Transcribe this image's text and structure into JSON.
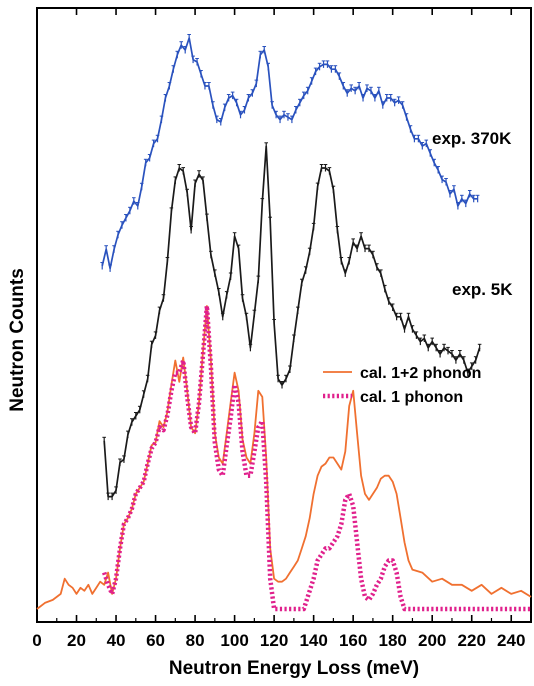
{
  "chart_data": {
    "type": "line",
    "xlabel": "Neutron Energy Loss  (meV)",
    "ylabel": "Neutron Counts",
    "xlim": [
      0,
      250
    ],
    "xticks": [
      0,
      20,
      40,
      60,
      80,
      100,
      120,
      140,
      160,
      180,
      200,
      220,
      240
    ],
    "yticks_shown": false,
    "grid": false,
    "legend_position": "center-right",
    "series": [
      {
        "name": "exp. 370K",
        "color": "#2a52be",
        "style": "line-errorbars",
        "x": [
          33,
          35,
          37,
          39,
          41,
          43,
          45,
          47,
          49,
          51,
          53,
          55,
          57,
          59,
          61,
          63,
          65,
          67,
          69,
          71,
          73,
          75,
          77,
          79,
          81,
          83,
          85,
          87,
          89,
          91,
          93,
          95,
          97,
          99,
          101,
          103,
          105,
          107,
          109,
          111,
          113,
          115,
          117,
          119,
          121,
          123,
          125,
          127,
          129,
          131,
          133,
          135,
          137,
          139,
          141,
          143,
          145,
          147,
          149,
          151,
          153,
          155,
          157,
          159,
          161,
          163,
          165,
          167,
          169,
          171,
          173,
          175,
          177,
          179,
          181,
          183,
          185,
          187,
          189,
          191,
          193,
          195,
          197,
          199,
          201,
          203,
          205,
          207,
          209,
          211,
          213,
          215,
          217,
          219,
          221,
          223
        ],
        "y": [
          0.05,
          0.12,
          0.04,
          0.12,
          0.18,
          0.22,
          0.25,
          0.28,
          0.32,
          0.3,
          0.38,
          0.48,
          0.5,
          0.56,
          0.58,
          0.66,
          0.75,
          0.8,
          0.87,
          0.93,
          0.97,
          0.95,
          1.0,
          0.91,
          0.9,
          0.85,
          0.8,
          0.8,
          0.72,
          0.66,
          0.65,
          0.71,
          0.75,
          0.76,
          0.73,
          0.68,
          0.7,
          0.75,
          0.77,
          0.81,
          0.93,
          0.95,
          0.88,
          0.72,
          0.68,
          0.66,
          0.68,
          0.67,
          0.66,
          0.7,
          0.73,
          0.76,
          0.78,
          0.82,
          0.86,
          0.88,
          0.89,
          0.89,
          0.87,
          0.87,
          0.84,
          0.8,
          0.77,
          0.79,
          0.78,
          0.8,
          0.75,
          0.79,
          0.78,
          0.75,
          0.78,
          0.72,
          0.75,
          0.75,
          0.73,
          0.74,
          0.72,
          0.67,
          0.62,
          0.58,
          0.58,
          0.55,
          0.56,
          0.52,
          0.48,
          0.45,
          0.41,
          0.4,
          0.35,
          0.37,
          0.3,
          0.33,
          0.31,
          0.35,
          0.33,
          0.33
        ]
      },
      {
        "name": "exp. 5K",
        "color": "#1a1a1a",
        "style": "line-errorbars",
        "x": [
          34,
          36,
          38,
          40,
          42,
          44,
          46,
          48,
          50,
          52,
          54,
          56,
          58,
          60,
          62,
          64,
          66,
          68,
          70,
          72,
          74,
          76,
          78,
          80,
          82,
          84,
          86,
          88,
          90,
          92,
          94,
          96,
          98,
          100,
          102,
          104,
          106,
          108,
          110,
          112,
          114,
          116,
          118,
          120,
          122,
          124,
          126,
          128,
          130,
          132,
          134,
          136,
          138,
          140,
          142,
          144,
          146,
          148,
          150,
          152,
          154,
          156,
          158,
          160,
          162,
          164,
          166,
          168,
          170,
          172,
          174,
          176,
          178,
          180,
          182,
          184,
          186,
          188,
          190,
          192,
          194,
          196,
          198,
          200,
          202,
          204,
          206,
          208,
          210,
          212,
          214,
          216,
          218,
          220,
          222,
          224
        ],
        "y": [
          0.12,
          -0.06,
          -0.06,
          -0.04,
          0.05,
          0.06,
          0.14,
          0.18,
          0.2,
          0.22,
          0.27,
          0.32,
          0.43,
          0.46,
          0.54,
          0.58,
          0.7,
          0.86,
          0.96,
          1.0,
          0.99,
          0.92,
          0.8,
          0.95,
          0.98,
          0.96,
          0.84,
          0.72,
          0.66,
          0.6,
          0.52,
          0.59,
          0.65,
          0.78,
          0.74,
          0.58,
          0.52,
          0.42,
          0.53,
          0.64,
          0.89,
          1.07,
          0.83,
          0.5,
          0.32,
          0.3,
          0.32,
          0.35,
          0.45,
          0.54,
          0.63,
          0.67,
          0.73,
          0.81,
          0.94,
          1.0,
          1.0,
          0.99,
          0.93,
          0.8,
          0.7,
          0.66,
          0.7,
          0.76,
          0.74,
          0.78,
          0.74,
          0.74,
          0.72,
          0.68,
          0.66,
          0.61,
          0.57,
          0.55,
          0.52,
          0.52,
          0.48,
          0.52,
          0.48,
          0.46,
          0.44,
          0.45,
          0.42,
          0.44,
          0.42,
          0.4,
          0.42,
          0.41,
          0.4,
          0.38,
          0.4,
          0.38,
          0.34,
          0.36,
          0.38,
          0.42
        ]
      },
      {
        "name": "cal. 1+2 phonon",
        "color": "#f07030",
        "style": "solid",
        "x": [
          0,
          4,
          8,
          12,
          14,
          16,
          18,
          20,
          22,
          24,
          26,
          28,
          30,
          32,
          34,
          36,
          38,
          40,
          42,
          44,
          46,
          48,
          50,
          52,
          54,
          56,
          58,
          60,
          62,
          64,
          66,
          68,
          70,
          72,
          74,
          76,
          78,
          80,
          82,
          84,
          86,
          88,
          90,
          92,
          94,
          96,
          98,
          100,
          102,
          104,
          106,
          108,
          110,
          112,
          114,
          116,
          118,
          120,
          122,
          124,
          126,
          128,
          130,
          132,
          134,
          136,
          138,
          140,
          142,
          144,
          146,
          148,
          150,
          152,
          154,
          156,
          158,
          160,
          162,
          164,
          166,
          168,
          170,
          172,
          174,
          176,
          178,
          180,
          182,
          184,
          186,
          188,
          190,
          195,
          200,
          205,
          210,
          215,
          220,
          225,
          230,
          235,
          240,
          245,
          250
        ],
        "y": [
          0.0,
          0.02,
          0.03,
          0.05,
          0.1,
          0.08,
          0.07,
          0.05,
          0.07,
          0.06,
          0.08,
          0.05,
          0.07,
          0.09,
          0.08,
          0.12,
          0.05,
          0.1,
          0.2,
          0.28,
          0.3,
          0.33,
          0.38,
          0.4,
          0.42,
          0.48,
          0.54,
          0.55,
          0.62,
          0.6,
          0.65,
          0.74,
          0.82,
          0.75,
          0.83,
          0.72,
          0.6,
          0.58,
          0.68,
          0.85,
          1.0,
          0.82,
          0.58,
          0.5,
          0.48,
          0.58,
          0.68,
          0.78,
          0.72,
          0.56,
          0.5,
          0.48,
          0.58,
          0.72,
          0.7,
          0.5,
          0.2,
          0.1,
          0.09,
          0.09,
          0.1,
          0.12,
          0.14,
          0.16,
          0.2,
          0.24,
          0.3,
          0.38,
          0.44,
          0.47,
          0.48,
          0.5,
          0.5,
          0.48,
          0.46,
          0.52,
          0.67,
          0.72,
          0.58,
          0.44,
          0.38,
          0.36,
          0.38,
          0.4,
          0.43,
          0.44,
          0.44,
          0.42,
          0.38,
          0.3,
          0.22,
          0.16,
          0.13,
          0.12,
          0.09,
          0.1,
          0.08,
          0.08,
          0.06,
          0.08,
          0.05,
          0.07,
          0.05,
          0.06,
          0.04
        ]
      },
      {
        "name": "cal. 1 phonon",
        "color": "#e0208c",
        "style": "dotted",
        "x": [
          34,
          36,
          38,
          40,
          42,
          44,
          46,
          48,
          50,
          52,
          54,
          56,
          58,
          60,
          62,
          64,
          66,
          68,
          70,
          72,
          74,
          76,
          78,
          80,
          82,
          84,
          86,
          88,
          90,
          92,
          94,
          96,
          98,
          100,
          102,
          104,
          106,
          108,
          110,
          112,
          114,
          116,
          118,
          120,
          125,
          130,
          135,
          140,
          142,
          144,
          146,
          148,
          150,
          152,
          154,
          156,
          158,
          160,
          162,
          164,
          166,
          168,
          170,
          172,
          174,
          176,
          178,
          180,
          182,
          184,
          186,
          190,
          200,
          210,
          220,
          230,
          240,
          250
        ],
        "y": [
          0.12,
          0.08,
          0.05,
          0.1,
          0.2,
          0.28,
          0.3,
          0.33,
          0.38,
          0.4,
          0.42,
          0.48,
          0.53,
          0.55,
          0.6,
          0.59,
          0.64,
          0.72,
          0.78,
          0.78,
          0.82,
          0.7,
          0.6,
          0.58,
          0.68,
          0.84,
          1.0,
          0.8,
          0.55,
          0.46,
          0.44,
          0.54,
          0.63,
          0.74,
          0.68,
          0.52,
          0.44,
          0.44,
          0.52,
          0.6,
          0.62,
          0.42,
          0.1,
          0.0,
          0.0,
          0.0,
          0.0,
          0.1,
          0.16,
          0.18,
          0.2,
          0.2,
          0.22,
          0.24,
          0.28,
          0.36,
          0.38,
          0.34,
          0.22,
          0.1,
          0.04,
          0.03,
          0.05,
          0.08,
          0.1,
          0.14,
          0.16,
          0.16,
          0.12,
          0.04,
          0.0,
          0.0,
          0.0,
          0.0,
          0.0,
          0.0,
          0.0,
          0.0
        ]
      }
    ]
  }
}
